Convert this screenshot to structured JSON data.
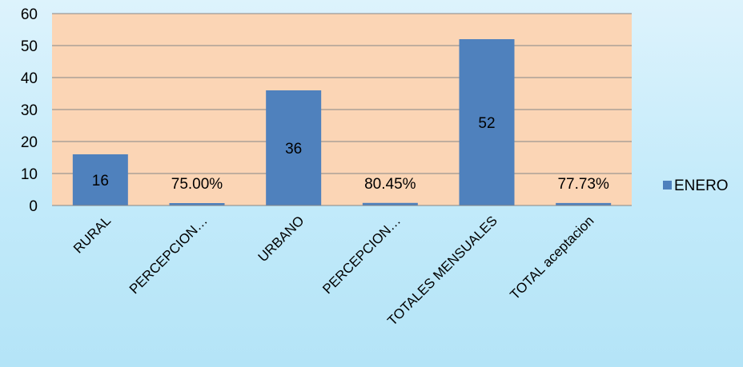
{
  "chart_data": {
    "type": "bar",
    "categories": [
      "RURAL",
      "PERCEPCION…",
      "URBANO",
      "PERCEPCION…",
      "TOTALES MENSUALES",
      "TOTAL aceptacion"
    ],
    "series": [
      {
        "name": "ENERO",
        "values": [
          16,
          0.75,
          36,
          0.8045,
          52,
          0.7773
        ],
        "data_labels": [
          "16",
          "75.00%",
          "36",
          "80.45%",
          "52",
          "77.73%"
        ],
        "color": "#4f81bd"
      }
    ],
    "ylim": [
      0,
      60
    ],
    "yticks": [
      0,
      10,
      20,
      30,
      40,
      50,
      60
    ],
    "grid": true,
    "legend": "right",
    "plot_background": "#fbd5b5"
  }
}
